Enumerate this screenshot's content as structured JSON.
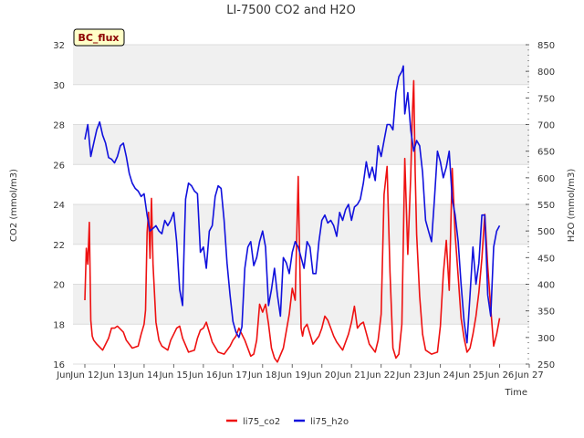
{
  "chart_data": {
    "type": "line",
    "title": "LI-7500 CO2 and H2O",
    "xlabel": "Time",
    "ylabel_left": "CO2 (mmol/m3)",
    "ylabel_right": "H2O (mmol/m3)",
    "badge": "BC_flux",
    "x_range": [
      11.6,
      27.0
    ],
    "ylim_left": [
      16,
      32
    ],
    "ylim_right": [
      250,
      850
    ],
    "x_ticks": [
      {
        "value": 12,
        "label": "Jun 12"
      },
      {
        "value": 13,
        "label": "Jun 13"
      },
      {
        "value": 14,
        "label": "Jun 14"
      },
      {
        "value": 15,
        "label": "Jun 15"
      },
      {
        "value": 16,
        "label": "Jun 16"
      },
      {
        "value": 17,
        "label": "Jun 17"
      },
      {
        "value": 18,
        "label": "Jun 18"
      },
      {
        "value": 19,
        "label": "Jun 19"
      },
      {
        "value": 20,
        "label": "Jun 20"
      },
      {
        "value": 21,
        "label": "Jun 21"
      },
      {
        "value": 22,
        "label": "Jun 22"
      },
      {
        "value": 23,
        "label": "Jun 23"
      },
      {
        "value": 24,
        "label": "Jun 24"
      },
      {
        "value": 25,
        "label": "Jun 25"
      },
      {
        "value": 26,
        "label": "Jun 26"
      },
      {
        "value": 27,
        "label": "Jun 27"
      }
    ],
    "y_left_ticks": [
      "16",
      "18",
      "20",
      "22",
      "24",
      "26",
      "28",
      "30",
      "32"
    ],
    "y_right_ticks": [
      "250",
      "300",
      "350",
      "400",
      "450",
      "500",
      "550",
      "600",
      "650",
      "700",
      "750",
      "800",
      "850"
    ],
    "series": [
      {
        "name": "li75_co2",
        "color": "#ee1111",
        "axis": "left",
        "x": [
          12.0,
          12.05,
          12.1,
          12.15,
          12.2,
          12.25,
          12.3,
          12.4,
          12.6,
          12.8,
          12.9,
          13.0,
          13.1,
          13.3,
          13.4,
          13.6,
          13.8,
          13.9,
          14.0,
          14.05,
          14.1,
          14.15,
          14.2,
          14.25,
          14.3,
          14.4,
          14.5,
          14.6,
          14.8,
          14.9,
          15.0,
          15.1,
          15.2,
          15.3,
          15.5,
          15.7,
          15.8,
          15.9,
          16.0,
          16.1,
          16.3,
          16.5,
          16.7,
          16.9,
          17.0,
          17.1,
          17.2,
          17.4,
          17.6,
          17.7,
          17.8,
          17.9,
          18.0,
          18.1,
          18.2,
          18.3,
          18.4,
          18.5,
          18.7,
          18.9,
          19.0,
          19.1,
          19.2,
          19.25,
          19.3,
          19.35,
          19.4,
          19.5,
          19.7,
          19.9,
          20.0,
          20.1,
          20.2,
          20.3,
          20.4,
          20.5,
          20.7,
          20.9,
          21.0,
          21.1,
          21.2,
          21.3,
          21.4,
          21.6,
          21.8,
          21.9,
          22.0,
          22.1,
          22.2,
          22.3,
          22.4,
          22.5,
          22.6,
          22.7,
          22.8,
          22.9,
          23.0,
          23.05,
          23.1,
          23.15,
          23.2,
          23.3,
          23.4,
          23.5,
          23.7,
          23.9,
          24.0,
          24.1,
          24.2,
          24.3,
          24.4,
          24.5,
          24.6,
          24.7,
          24.8,
          24.9,
          25.0,
          25.1,
          25.2,
          25.3,
          25.4,
          25.5,
          25.6,
          25.7,
          25.8,
          25.9,
          26.0
        ],
        "values": [
          19.2,
          21.8,
          21.0,
          23.1,
          18.2,
          17.4,
          17.2,
          17.0,
          16.7,
          17.3,
          17.8,
          17.8,
          17.9,
          17.6,
          17.2,
          16.8,
          16.9,
          17.5,
          18.0,
          18.7,
          22.6,
          23.6,
          21.3,
          24.3,
          21.0,
          18.1,
          17.2,
          16.9,
          16.7,
          17.2,
          17.5,
          17.8,
          17.9,
          17.3,
          16.6,
          16.7,
          17.3,
          17.7,
          17.8,
          18.1,
          17.1,
          16.6,
          16.5,
          16.9,
          17.2,
          17.4,
          17.8,
          17.2,
          16.4,
          16.5,
          17.2,
          19.0,
          18.6,
          19.0,
          18.0,
          16.8,
          16.3,
          16.1,
          16.8,
          18.5,
          19.8,
          19.2,
          25.4,
          21.4,
          17.8,
          17.4,
          17.8,
          18.0,
          17.0,
          17.4,
          17.8,
          18.4,
          18.2,
          17.8,
          17.4,
          17.1,
          16.7,
          17.5,
          18.1,
          18.9,
          17.8,
          18.0,
          18.1,
          17.0,
          16.6,
          17.2,
          18.5,
          24.5,
          25.9,
          20.6,
          16.8,
          16.3,
          16.5,
          18.0,
          26.3,
          21.5,
          25.4,
          28.4,
          30.2,
          25.6,
          22.5,
          19.4,
          17.5,
          16.7,
          16.5,
          16.6,
          17.9,
          20.5,
          22.2,
          19.7,
          25.8,
          22.5,
          20.4,
          18.3,
          17.3,
          16.6,
          16.8,
          17.5,
          18.4,
          19.6,
          21.3,
          23.5,
          20.9,
          18.8,
          16.9,
          17.5,
          18.3
        ]
      },
      {
        "name": "li75_h2o",
        "color": "#1111dd",
        "axis": "right",
        "x": [
          12.0,
          12.1,
          12.2,
          12.3,
          12.4,
          12.5,
          12.6,
          12.7,
          12.8,
          12.9,
          13.0,
          13.1,
          13.2,
          13.3,
          13.4,
          13.5,
          13.6,
          13.7,
          13.8,
          13.9,
          14.0,
          14.1,
          14.2,
          14.3,
          14.4,
          14.5,
          14.6,
          14.7,
          14.8,
          14.9,
          15.0,
          15.1,
          15.2,
          15.3,
          15.35,
          15.4,
          15.5,
          15.6,
          15.7,
          15.8,
          15.9,
          16.0,
          16.1,
          16.2,
          16.3,
          16.4,
          16.5,
          16.6,
          16.7,
          16.8,
          16.9,
          17.0,
          17.1,
          17.2,
          17.3,
          17.4,
          17.5,
          17.6,
          17.7,
          17.8,
          17.9,
          18.0,
          18.1,
          18.2,
          18.3,
          18.4,
          18.5,
          18.6,
          18.7,
          18.8,
          18.9,
          19.0,
          19.1,
          19.2,
          19.3,
          19.4,
          19.5,
          19.6,
          19.7,
          19.8,
          19.9,
          20.0,
          20.1,
          20.2,
          20.3,
          20.4,
          20.5,
          20.6,
          20.7,
          20.8,
          20.9,
          21.0,
          21.1,
          21.2,
          21.3,
          21.4,
          21.5,
          21.6,
          21.7,
          21.8,
          21.9,
          22.0,
          22.1,
          22.2,
          22.3,
          22.4,
          22.5,
          22.6,
          22.7,
          22.75,
          22.8,
          22.9,
          23.0,
          23.1,
          23.2,
          23.3,
          23.4,
          23.5,
          23.6,
          23.7,
          23.8,
          23.9,
          24.0,
          24.1,
          24.2,
          24.3,
          24.4,
          24.5,
          24.6,
          24.7,
          24.8,
          24.9,
          25.0,
          25.1,
          25.2,
          25.3,
          25.4,
          25.5,
          25.6,
          25.7,
          25.8,
          25.9,
          26.0
        ],
        "values": [
          672,
          700,
          640,
          665,
          690,
          705,
          680,
          665,
          638,
          635,
          628,
          640,
          660,
          665,
          640,
          608,
          590,
          580,
          575,
          565,
          570,
          530,
          500,
          505,
          510,
          500,
          495,
          520,
          510,
          520,
          535,
          480,
          390,
          360,
          470,
          560,
          590,
          585,
          575,
          570,
          460,
          470,
          430,
          500,
          510,
          565,
          585,
          580,
          520,
          440,
          380,
          330,
          310,
          300,
          320,
          430,
          470,
          480,
          435,
          450,
          480,
          500,
          470,
          360,
          390,
          430,
          380,
          340,
          450,
          440,
          420,
          460,
          480,
          470,
          450,
          430,
          480,
          470,
          420,
          420,
          480,
          520,
          530,
          515,
          520,
          510,
          490,
          535,
          520,
          540,
          550,
          520,
          545,
          550,
          560,
          590,
          630,
          600,
          620,
          595,
          660,
          640,
          670,
          700,
          700,
          690,
          760,
          790,
          800,
          810,
          720,
          760,
          690,
          650,
          670,
          660,
          610,
          520,
          500,
          480,
          560,
          650,
          630,
          600,
          620,
          650,
          560,
          530,
          480,
          400,
          330,
          290,
          380,
          470,
          400,
          440,
          530,
          530,
          380,
          340,
          470,
          500,
          510
        ]
      }
    ],
    "legend": [
      {
        "label": "li75_co2",
        "color": "#ee1111"
      },
      {
        "label": "li75_h2o",
        "color": "#1111dd"
      }
    ],
    "legend_position": "bottom-center",
    "grid": true
  }
}
